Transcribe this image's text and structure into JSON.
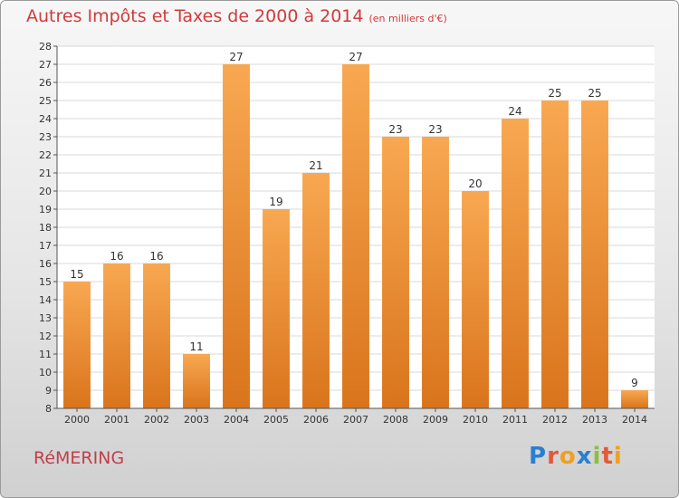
{
  "title": "Autres Impôts et Taxes de 2000 à 2014",
  "unit": "(en milliers d'€)",
  "commune": "RéMERING",
  "logo": {
    "text": "Proxiti",
    "letter_colors": [
      "#2a7fd0",
      "#e05a3a",
      "#f0a020",
      "#2a7fd0",
      "#8ac040",
      "#e05a3a",
      "#f0a020"
    ]
  },
  "colors": {
    "bar_light": "#f8a851",
    "bar_dark": "#d9741c",
    "grid": "#d8d8d8",
    "axis": "#555555",
    "plot_bg": "#ffffff"
  },
  "chart_data": {
    "type": "bar",
    "categories": [
      "2000",
      "2001",
      "2002",
      "2003",
      "2004",
      "2005",
      "2006",
      "2007",
      "2008",
      "2009",
      "2010",
      "2011",
      "2012",
      "2013",
      "2014"
    ],
    "values": [
      15,
      16,
      16,
      11,
      27,
      19,
      21,
      27,
      23,
      23,
      20,
      24,
      25,
      25,
      9
    ],
    "ylim": [
      8,
      28
    ],
    "yticks": [
      8,
      9,
      10,
      11,
      12,
      13,
      14,
      15,
      16,
      17,
      18,
      19,
      20,
      21,
      22,
      23,
      24,
      25,
      26,
      27,
      28
    ],
    "grid": true,
    "data_labels": true
  }
}
